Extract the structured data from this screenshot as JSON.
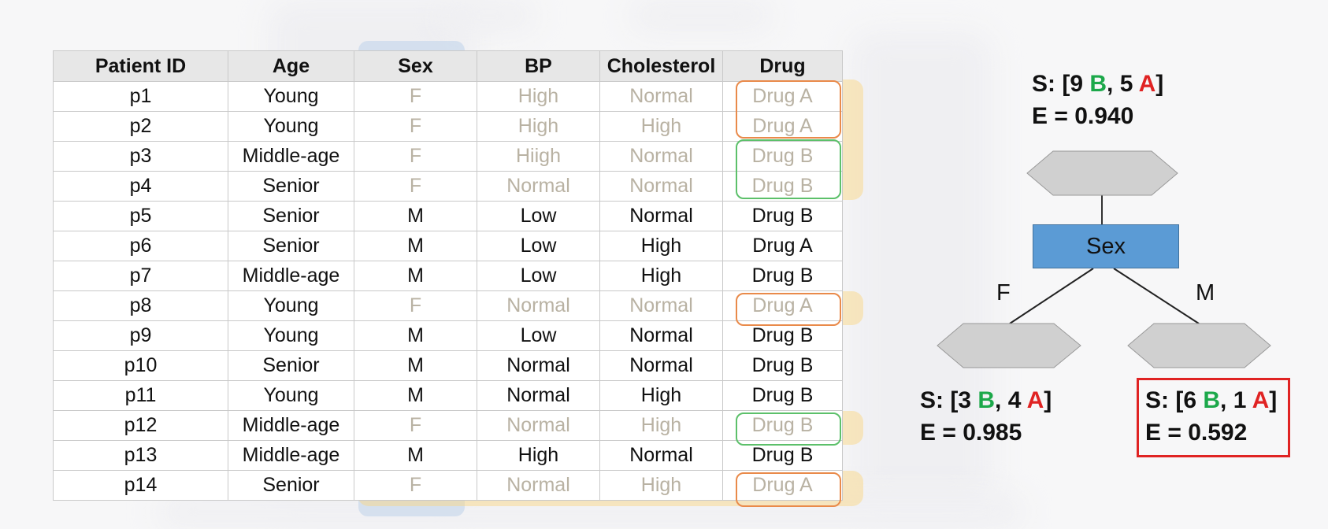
{
  "table": {
    "headers": [
      "Patient ID",
      "Age",
      "Sex",
      "BP",
      "Cholesterol",
      "Drug"
    ],
    "rows": [
      [
        "p1",
        "Young",
        "F",
        "High",
        "Normal",
        "Drug A"
      ],
      [
        "p2",
        "Young",
        "F",
        "High",
        "High",
        "Drug A"
      ],
      [
        "p3",
        "Middle-age",
        "F",
        "Hiigh",
        "Normal",
        "Drug B"
      ],
      [
        "p4",
        "Senior",
        "F",
        "Normal",
        "Normal",
        "Drug B"
      ],
      [
        "p5",
        "Senior",
        "M",
        "Low",
        "Normal",
        "Drug B"
      ],
      [
        "p6",
        "Senior",
        "M",
        "Low",
        "High",
        "Drug A"
      ],
      [
        "p7",
        "Middle-age",
        "M",
        "Low",
        "High",
        "Drug B"
      ],
      [
        "p8",
        "Young",
        "F",
        "Normal",
        "Normal",
        "Drug A"
      ],
      [
        "p9",
        "Young",
        "M",
        "Low",
        "Normal",
        "Drug B"
      ],
      [
        "p10",
        "Senior",
        "M",
        "Normal",
        "Normal",
        "Drug B"
      ],
      [
        "p11",
        "Young",
        "M",
        "Normal",
        "High",
        "Drug B"
      ],
      [
        "p12",
        "Middle-age",
        "F",
        "Normal",
        "High",
        "Drug B"
      ],
      [
        "p13",
        "Middle-age",
        "M",
        "High",
        "Normal",
        "Drug B"
      ],
      [
        "p14",
        "Senior",
        "F",
        "Normal",
        "High",
        "Drug A"
      ]
    ]
  },
  "tree": {
    "root": {
      "s_prefix": "S: [",
      "b_count": "9 ",
      "b_letter": "B",
      "sep": ", ",
      "a_count": "5 ",
      "a_letter": "A",
      "s_suffix": "]",
      "entropy": "E = 0.940"
    },
    "split_node": "Sex",
    "left_branch": "F",
    "right_branch": "M",
    "left": {
      "s_prefix": "S: [",
      "b_count": "3 ",
      "b_letter": "B",
      "sep": ", ",
      "a_count": "4 ",
      "a_letter": "A",
      "s_suffix": "]",
      "entropy": "E = 0.985"
    },
    "right": {
      "s_prefix": "S: [",
      "b_count": "6 ",
      "b_letter": "B",
      "sep": ", ",
      "a_count": "1 ",
      "a_letter": "A",
      "s_suffix": "]",
      "entropy": "E = 0.592"
    }
  },
  "colors": {
    "drug_b": "#1ca84a",
    "drug_a": "#e02323",
    "female_highlight": "#fad47d",
    "sex_column_highlight": "#b4cde8",
    "split_node_fill": "#5b9bd5",
    "leaf_node_fill": "#d0d0d0"
  }
}
